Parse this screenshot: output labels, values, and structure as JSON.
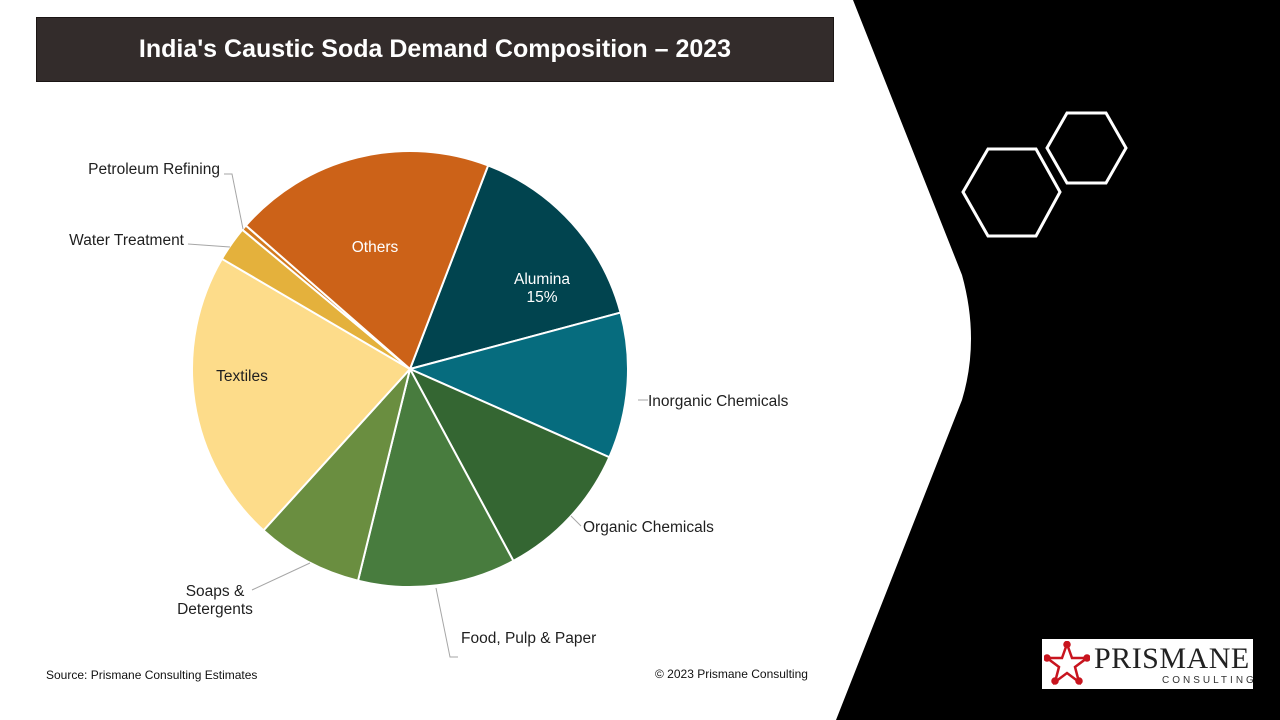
{
  "slide": {
    "title": "India's Caustic Soda Demand Composition – 2023",
    "source": "Source: Prismane Consulting Estimates",
    "copyright": "© 2023 Prismane Consulting",
    "logo_name": "PRISMANE",
    "logo_sub": "CONSULTING"
  },
  "chart_data": {
    "type": "pie",
    "title": "India's Caustic Soda Demand Composition – 2023",
    "start_angle_deg": 21,
    "slices": [
      {
        "label": "Alumina",
        "value": 15,
        "value_label": "15%",
        "color": "#01444f"
      },
      {
        "label": "Inorganic Chemicals",
        "value": 10.8,
        "color": "#066c7e"
      },
      {
        "label": "Organic Chemicals",
        "value": 10.5,
        "color": "#346632"
      },
      {
        "label": "Food, Pulp & Paper",
        "value": 11.7,
        "color": "#487c3e"
      },
      {
        "label": "Soaps & Detergents",
        "value": 7.9,
        "color": "#6a8e40"
      },
      {
        "label": "Textiles",
        "value": 21.7,
        "color": "#fddc8a"
      },
      {
        "label": "Water Treatment",
        "value": 2.6,
        "color": "#e4b13c"
      },
      {
        "label": "Petroleum Refining",
        "value": 0.4,
        "color": "#d37a1e"
      },
      {
        "label": "Others",
        "value": 19.4,
        "color": "#cc6218"
      }
    ]
  }
}
